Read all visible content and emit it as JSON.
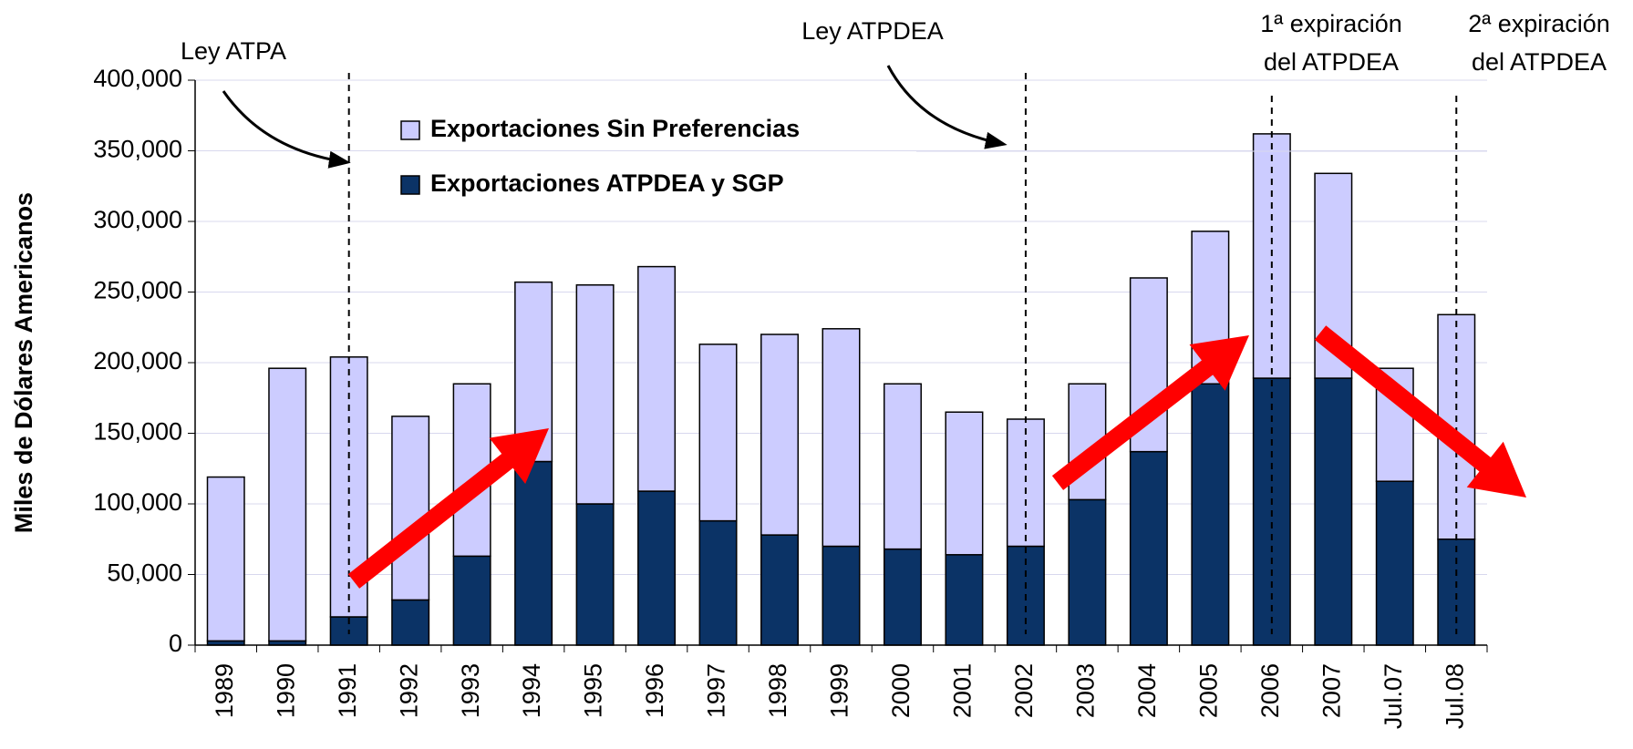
{
  "chart_data": {
    "type": "stacked-bar",
    "y_label": "Miles de Dólares Americanos",
    "categories": [
      "1989",
      "1990",
      "1991",
      "1992",
      "1993",
      "1994",
      "1995",
      "1996",
      "1997",
      "1998",
      "1999",
      "2000",
      "2001",
      "2002",
      "2003",
      "2004",
      "2005",
      "2006",
      "2007",
      "Jul.07",
      "Jul.08"
    ],
    "series": [
      {
        "name": "Exportaciones ATPDEA y SGP",
        "color": "#0b3366",
        "values": [
          3000,
          3000,
          20000,
          32000,
          63000,
          130000,
          100000,
          109000,
          88000,
          78000,
          70000,
          68000,
          64000,
          70000,
          103000,
          137000,
          185000,
          189000,
          189000,
          116000,
          75000
        ]
      },
      {
        "name": "Exportaciones Sin Preferencias",
        "color": "#ccccff",
        "values": [
          116000,
          193000,
          184000,
          130000,
          122000,
          127000,
          155000,
          159000,
          125000,
          142000,
          154000,
          117000,
          101000,
          90000,
          82000,
          123000,
          108000,
          173000,
          145000,
          80000,
          159000
        ]
      }
    ],
    "legend_text_colors": [
      "#0b3366",
      "#3366ff"
    ],
    "ylim": [
      0,
      400000
    ],
    "yticks": [
      {
        "value": 0,
        "label": "0"
      },
      {
        "value": 50000,
        "label": "50,000"
      },
      {
        "value": 100000,
        "label": "100,000"
      },
      {
        "value": 150000,
        "label": "150,000"
      },
      {
        "value": 200000,
        "label": "200,000"
      },
      {
        "value": 250000,
        "label": "250,000"
      },
      {
        "value": 300000,
        "label": "300,000"
      },
      {
        "value": 350000,
        "label": "350,000"
      },
      {
        "value": 400000,
        "label": "400,000"
      }
    ],
    "grid": true,
    "annotations": [
      {
        "lines": [
          "Ley ATPA"
        ]
      },
      {
        "lines": [
          "Ley ATPDEA"
        ]
      },
      {
        "lines": [
          "1ª expiración",
          "del ATPDEA"
        ]
      },
      {
        "lines": [
          "2ª expiración",
          "del ATPDEA"
        ]
      }
    ]
  }
}
